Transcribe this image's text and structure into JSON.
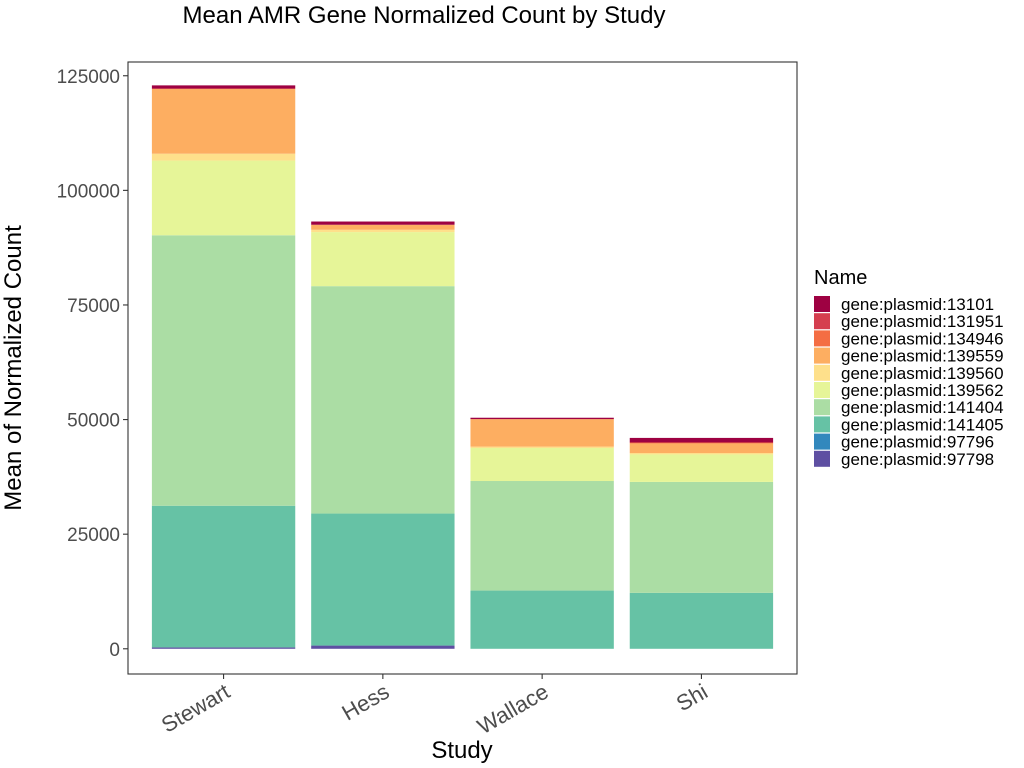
{
  "chart_data": {
    "type": "bar",
    "stacked": true,
    "title": "Mean AMR Gene Normalized Count by Study",
    "xlabel": "Study",
    "ylabel": "Mean of Normalized Count",
    "ylim": [
      -5500,
      128000
    ],
    "yticks": [
      0,
      25000,
      50000,
      75000,
      100000,
      125000
    ],
    "ytick_labels": [
      "0",
      "25000",
      "50000",
      "75000",
      "100000",
      "125000"
    ],
    "grid": false,
    "legend": {
      "title": "Name",
      "placement": "right"
    },
    "categories": [
      "Stewart",
      "Hess",
      "Wallace",
      "Shi"
    ],
    "series": [
      {
        "name": "gene:plasmid:97798",
        "color": "#5E4FA2",
        "values": [
          300,
          700,
          0,
          0
        ]
      },
      {
        "name": "gene:plasmid:97796",
        "color": "#3288BD",
        "values": [
          0,
          0,
          0,
          0
        ]
      },
      {
        "name": "gene:plasmid:141405",
        "color": "#66C2A5",
        "values": [
          30900,
          28800,
          12700,
          12200
        ]
      },
      {
        "name": "gene:plasmid:141404",
        "color": "#ABDDA4",
        "values": [
          59000,
          49600,
          23900,
          24200
        ]
      },
      {
        "name": "gene:plasmid:139562",
        "color": "#E6F598",
        "values": [
          16300,
          11800,
          7200,
          6000
        ]
      },
      {
        "name": "gene:plasmid:139560",
        "color": "#FEE08B",
        "values": [
          1500,
          500,
          300,
          300
        ]
      },
      {
        "name": "gene:plasmid:139559",
        "color": "#FDAE61",
        "values": [
          14100,
          1100,
          6000,
          2100
        ]
      },
      {
        "name": "gene:plasmid:134946",
        "color": "#F46D43",
        "values": [
          100,
          0,
          0,
          200
        ]
      },
      {
        "name": "gene:plasmid:131951",
        "color": "#D53E4F",
        "values": [
          0,
          0,
          0,
          0
        ]
      },
      {
        "name": "gene:plasmid:13101",
        "color": "#9E0142",
        "values": [
          700,
          700,
          300,
          1000
        ]
      }
    ]
  }
}
